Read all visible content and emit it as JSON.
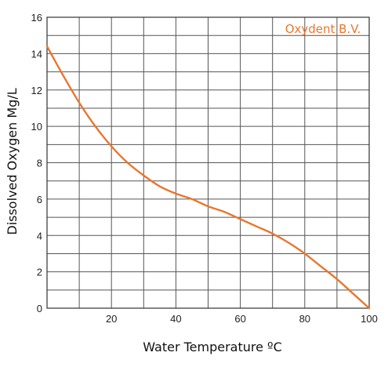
{
  "chart_data": {
    "type": "line",
    "title": "",
    "xlabel": "Water Temperature ºC",
    "ylabel": "Dissolved Oxygen Mg/L",
    "annotation": "Oxydent B.V.",
    "xlim": [
      0,
      100
    ],
    "ylim": [
      0,
      16
    ],
    "x_ticks": [
      20,
      40,
      60,
      80,
      100
    ],
    "y_ticks": [
      0,
      2,
      4,
      6,
      8,
      10,
      12,
      14,
      16
    ],
    "x_tick_labels": [
      "20",
      "40",
      "60",
      "80",
      "100"
    ],
    "y_tick_labels": [
      "0",
      "2",
      "4",
      "6",
      "8",
      "10",
      "12",
      "14",
      "16"
    ],
    "grid": true,
    "series": [
      {
        "color": "#E8772E",
        "x": [
          0,
          5,
          10,
          15,
          20,
          25,
          30,
          35,
          40,
          45,
          50,
          55,
          60,
          65,
          70,
          75,
          80,
          85,
          90,
          95,
          100
        ],
        "y": [
          14.4,
          12.8,
          11.3,
          10.0,
          8.9,
          8.0,
          7.3,
          6.7,
          6.3,
          6.0,
          5.6,
          5.3,
          4.9,
          4.5,
          4.1,
          3.6,
          3.0,
          2.3,
          1.6,
          0.8,
          0.0
        ]
      }
    ]
  },
  "colors": {
    "grid": "#555555",
    "background": "#ffffff"
  }
}
